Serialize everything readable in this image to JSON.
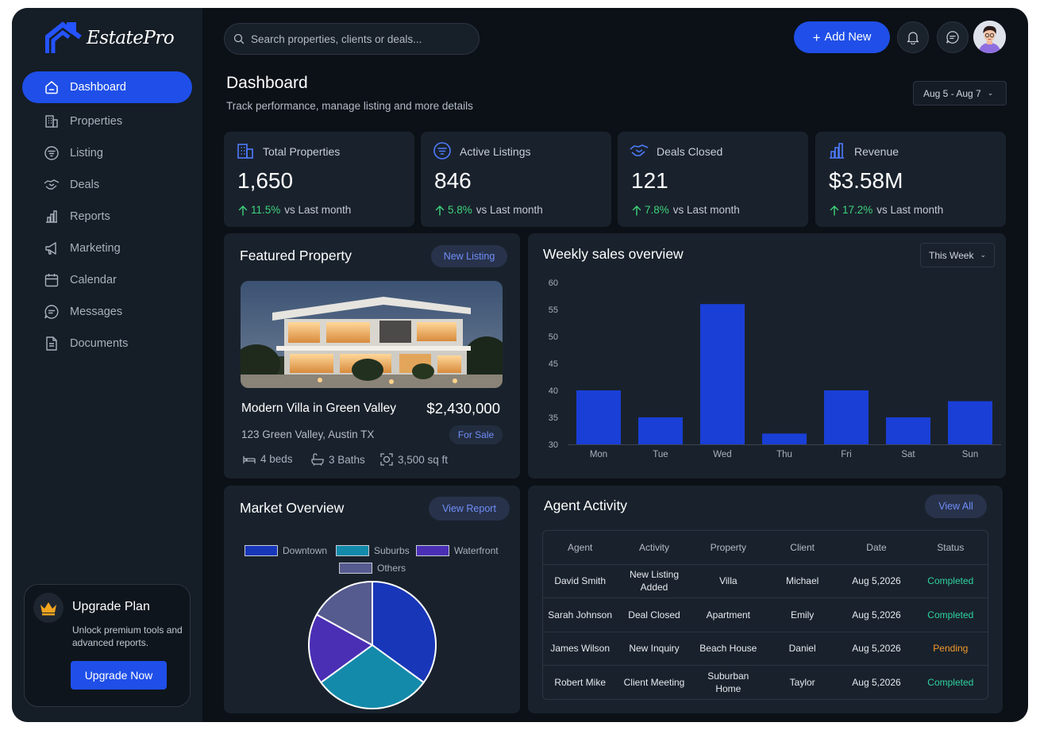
{
  "brand": {
    "name": "EstatePro"
  },
  "sidebar": {
    "items": [
      {
        "label": "Dashboard",
        "icon": "home-icon",
        "active": true
      },
      {
        "label": "Properties",
        "icon": "building-icon"
      },
      {
        "label": "Listing",
        "icon": "filter-icon"
      },
      {
        "label": "Deals",
        "icon": "handshake-icon"
      },
      {
        "label": "Reports",
        "icon": "bar-chart-icon"
      },
      {
        "label": "Marketing",
        "icon": "megaphone-icon"
      },
      {
        "label": "Calendar",
        "icon": "calendar-icon"
      },
      {
        "label": "Messages",
        "icon": "chat-icon"
      },
      {
        "label": "Documents",
        "icon": "document-icon"
      }
    ],
    "upgrade": {
      "title": "Upgrade Plan",
      "description": "Unlock premium tools and advanced reports.",
      "button": "Upgrade Now"
    }
  },
  "topbar": {
    "search_placeholder": "Search properties, clients or deals...",
    "add_button": "Add New"
  },
  "header": {
    "title": "Dashboard",
    "subtitle": "Track performance, manage listing and more details",
    "date_range": "Aug 5 - Aug 7"
  },
  "stats": [
    {
      "label": "Total Properties",
      "value": "1,650",
      "change": "11.5%",
      "suffix": "vs Last month",
      "icon": "building-icon"
    },
    {
      "label": "Active Listings",
      "value": "846",
      "change": "5.8%",
      "suffix": "vs Last month",
      "icon": "filter-icon"
    },
    {
      "label": "Deals Closed",
      "value": "121",
      "change": "7.8%",
      "suffix": "vs Last month",
      "icon": "handshake-icon"
    },
    {
      "label": "Revenue",
      "value": "$3.58M",
      "change": "17.2%",
      "suffix": "vs Last month",
      "icon": "bar-chart-icon"
    }
  ],
  "featured": {
    "title": "Featured Property",
    "badge": "New Listing",
    "name": "Modern Villa in Green Valley",
    "price": "$2,430,000",
    "address": "123 Green Valley, Austin TX",
    "status": "For Sale",
    "beds": "4 beds",
    "baths": "3 Baths",
    "area": "3,500 sq ft"
  },
  "weekly": {
    "title": "Weekly sales overview",
    "period": "This Week"
  },
  "chart_data": {
    "type": "bar",
    "categories": [
      "Mon",
      "Tue",
      "Wed",
      "Thu",
      "Fri",
      "Sat",
      "Sun"
    ],
    "values": [
      40,
      35,
      56,
      32,
      40,
      35,
      38
    ],
    "ylim": [
      30,
      60
    ],
    "yticks": [
      30,
      35,
      40,
      45,
      50,
      55,
      60
    ],
    "color": "#1a3fd6"
  },
  "market": {
    "title": "Market Overview",
    "button": "View Report",
    "legend": [
      {
        "label": "Downtown",
        "color": "#1836b8",
        "value": 35
      },
      {
        "label": "Suburbs",
        "color": "#138aaa",
        "value": 30
      },
      {
        "label": "Waterfront",
        "color": "#4a2fb5",
        "value": 18
      },
      {
        "label": "Others",
        "color": "#555a8f",
        "value": 17
      }
    ]
  },
  "agents": {
    "title": "Agent Activity",
    "button": "View All",
    "columns": [
      "Agent",
      "Activity",
      "Property",
      "Client",
      "Date",
      "Status"
    ],
    "rows": [
      {
        "agent": "David Smith",
        "activity": "New Listing Added",
        "property": "Villa",
        "client": "Michael",
        "date": "Aug 5,2026",
        "status": "Completed"
      },
      {
        "agent": "Sarah Johnson",
        "activity": "Deal Closed",
        "property": "Apartment",
        "client": "Emily",
        "date": "Aug 5,2026",
        "status": "Completed"
      },
      {
        "agent": "James Wilson",
        "activity": "New Inquiry",
        "property": "Beach House",
        "client": "Daniel",
        "date": "Aug 5,2026",
        "status": "Pending"
      },
      {
        "agent": "Robert Mike",
        "activity": "Client Meeting",
        "property": "Suburban Home",
        "client": "Taylor",
        "date": "Aug 5,2026",
        "status": "Completed"
      }
    ]
  }
}
